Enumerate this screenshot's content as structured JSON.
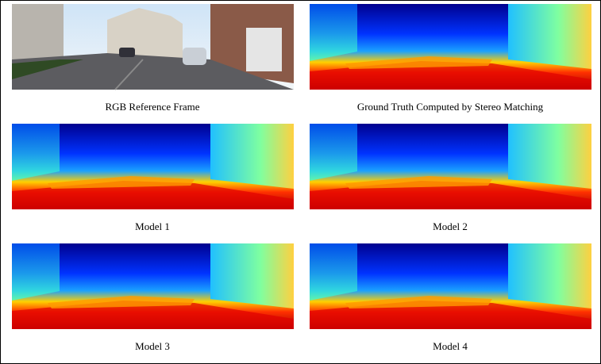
{
  "panels": [
    {
      "caption": "RGB Reference Frame"
    },
    {
      "caption": "Ground Truth Computed by Stereo Matching"
    },
    {
      "caption": "Model 1"
    },
    {
      "caption": "Model 2"
    },
    {
      "caption": "Model 3"
    },
    {
      "caption": "Model 4"
    }
  ]
}
